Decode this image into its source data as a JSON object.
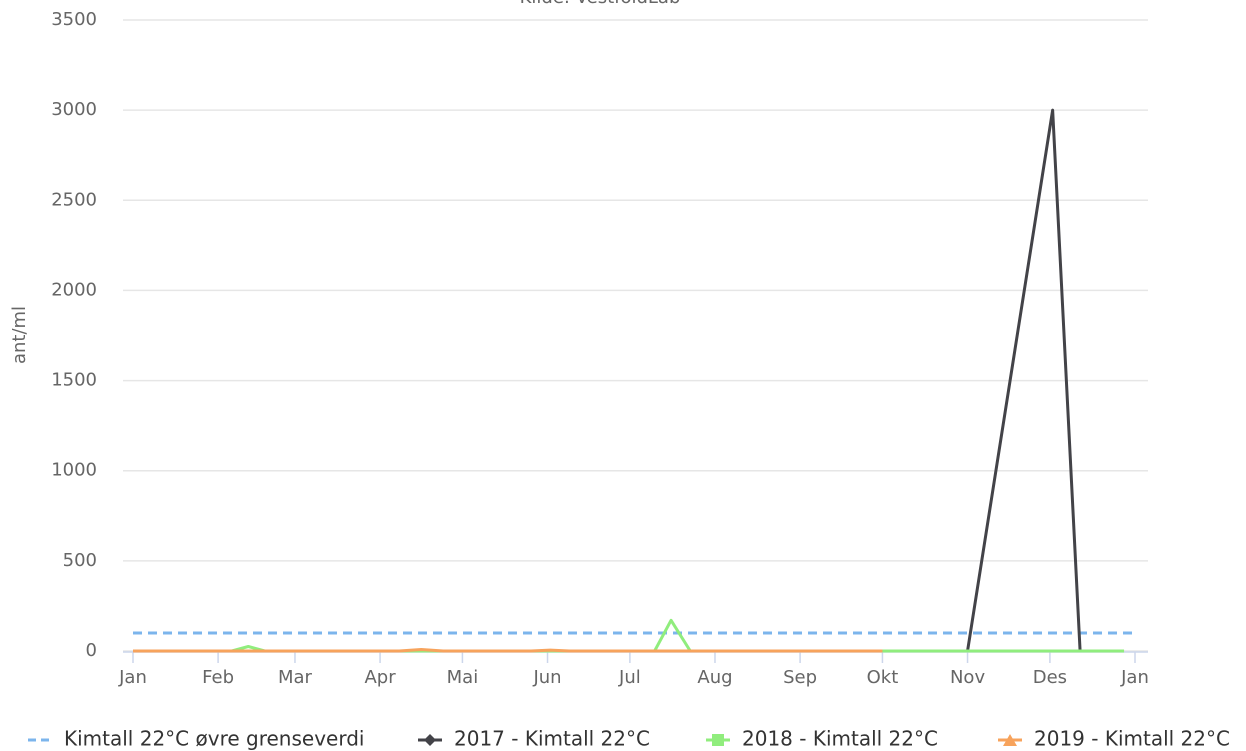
{
  "chart_data": {
    "type": "line",
    "subtitle": "Kilde: VestfoldLab",
    "y_label": "ant/ml",
    "xlim": [
      0,
      365
    ],
    "xticks": [
      {
        "value": 0,
        "label": "Jan"
      },
      {
        "value": 31,
        "label": "Feb"
      },
      {
        "value": 59,
        "label": "Mar"
      },
      {
        "value": 90,
        "label": "Apr"
      },
      {
        "value": 120,
        "label": "Mai"
      },
      {
        "value": 151,
        "label": "Jun"
      },
      {
        "value": 181,
        "label": "Jul"
      },
      {
        "value": 212,
        "label": "Aug"
      },
      {
        "value": 243,
        "label": "Sep"
      },
      {
        "value": 273,
        "label": "Okt"
      },
      {
        "value": 304,
        "label": "Nov"
      },
      {
        "value": 334,
        "label": "Des"
      },
      {
        "value": 365,
        "label": "Jan"
      }
    ],
    "ylim": [
      0,
      3500
    ],
    "yticks": [
      0,
      500,
      1000,
      1500,
      2000,
      2500,
      3000,
      3500
    ],
    "grid": true,
    "series": [
      {
        "name": "Kimtall 22°C øvre grenseverdi",
        "color": "#7cb5ec",
        "dashed": true,
        "x": [
          0,
          365
        ],
        "values": [
          100,
          100
        ]
      },
      {
        "name": "2017 - Kimtall 22°C",
        "color": "#434348",
        "marker": "diamond",
        "x": [
          304,
          335,
          345,
          361
        ],
        "values": [
          0,
          3000,
          0,
          0
        ]
      },
      {
        "name": "2018 - Kimtall 22°C",
        "color": "#90ed7d",
        "marker": "square",
        "x": [
          0,
          36,
          42,
          48,
          190,
          196,
          203,
          361
        ],
        "values": [
          0,
          0,
          25,
          0,
          0,
          170,
          0,
          0
        ]
      },
      {
        "name": "2019 - Kimtall 22°C",
        "color": "#f7a35c",
        "marker": "triangle",
        "x": [
          0,
          97,
          105,
          113,
          145,
          152,
          159,
          273
        ],
        "values": [
          0,
          0,
          8,
          0,
          0,
          5,
          0,
          0
        ]
      }
    ]
  }
}
